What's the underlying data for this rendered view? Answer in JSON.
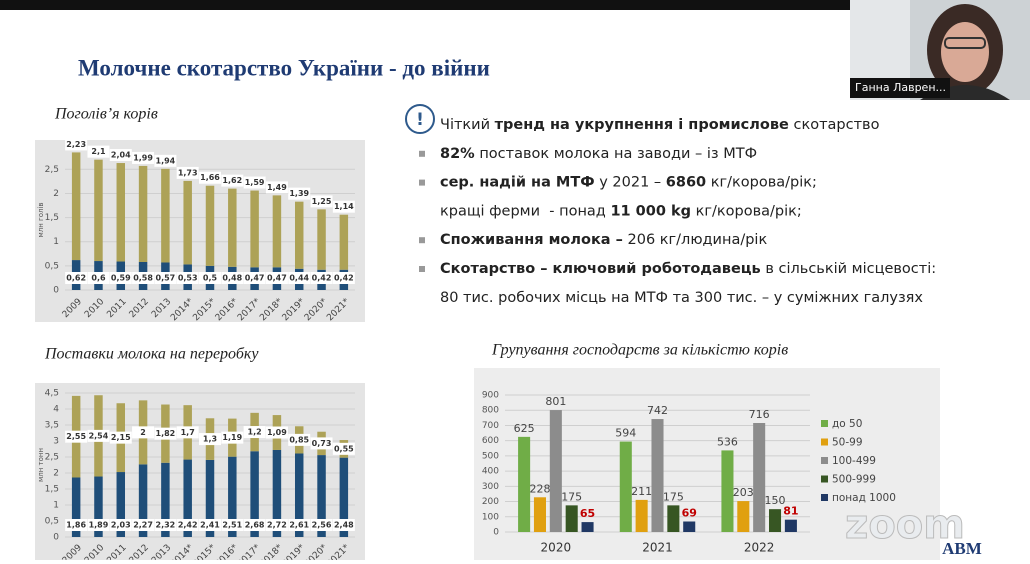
{
  "participant": {
    "name": "Ганна Лаврен..."
  },
  "slide": {
    "title": "Молочне скотарство України  -  до війни",
    "bullets": [
      {
        "icon": "!",
        "segments": [
          {
            "text": "Чіткий "
          },
          {
            "text": "тренд на укрупнення і промислове",
            "bold": true
          },
          {
            "text": " скотарство"
          }
        ]
      },
      {
        "marker": true,
        "segments": [
          {
            "text": "82%",
            "bold": true
          },
          {
            "text": " поставок молока на заводи – із МТФ"
          }
        ]
      },
      {
        "marker": true,
        "segments": [
          {
            "text": "сер. надій на МТФ",
            "bold": true
          },
          {
            "text": " у 2021 – "
          },
          {
            "text": "6860",
            "bold": true
          },
          {
            "text": " кг/корова/рік;"
          }
        ]
      },
      {
        "marker": false,
        "segments": [
          {
            "text": "кращі ферми  - понад "
          },
          {
            "text": "11 000 kg",
            "bold": true
          },
          {
            "text": " кг/корова/рік;"
          }
        ]
      },
      {
        "marker": true,
        "segments": [
          {
            "text": "Споживання молока –",
            "bold": true
          },
          {
            "text": " 206 кг/людина/рік"
          }
        ]
      },
      {
        "marker": true,
        "segments": [
          {
            "text": "Скотарство – ключовий роботодавець",
            "bold": true
          },
          {
            "text": " в сільській місцевості:"
          }
        ]
      },
      {
        "marker": false,
        "segments": [
          {
            "text": "80 тис. робочих місць на МТФ та 300 тис. – у суміжних галузях"
          }
        ]
      }
    ],
    "charts": [
      {
        "type": "bar",
        "stacked": true,
        "title": "Поголів’я корів",
        "ylabel": "млн голів",
        "categories": [
          "2009",
          "2010",
          "2011",
          "2012",
          "2013",
          "2014*",
          "2015*",
          "2016*",
          "2017*",
          "2018*",
          "2019*",
          "2020*",
          "2021*"
        ],
        "series": [
          {
            "color": "#1f4e79",
            "values": [
              0.62,
              0.6,
              0.59,
              0.58,
              0.57,
              0.53,
              0.5,
              0.48,
              0.47,
              0.47,
              0.44,
              0.42,
              0.42
            ],
            "value_labels": [
              "0,62",
              "0,6",
              "0,59",
              "0,58",
              "0,57",
              "0,53",
              "0,5",
              "0,48",
              "0,47",
              "0,47",
              "0,44",
              "0,42",
              "0,42"
            ]
          },
          {
            "color": "#ada257",
            "values": [
              2.23,
              2.1,
              2.04,
              1.99,
              1.94,
              1.73,
              1.66,
              1.62,
              1.59,
              1.49,
              1.39,
              1.25,
              1.14
            ],
            "value_labels": [
              "2,23",
              "2,1",
              "2,04",
              "1,99",
              "1,94",
              "1,73",
              "1,66",
              "1,62",
              "1,59",
              "1,49",
              "1,39",
              "1,25",
              "1,14"
            ]
          }
        ],
        "ylim": [
          0,
          2.9
        ],
        "yticks": [
          0,
          {
            "value": 0.5,
            "label": "0,5"
          },
          1,
          {
            "value": 1.5,
            "label": "1,5"
          },
          2,
          {
            "value": 2.5,
            "label": "2,5"
          }
        ],
        "grid": true
      },
      {
        "type": "bar",
        "stacked": true,
        "title": "Поставки молока на переробку",
        "ylabel": "млн тонн",
        "categories": [
          "2009",
          "2010",
          "2011",
          "2012",
          "2013",
          "2014*",
          "2015*",
          "2016*",
          "2017*",
          "2018*",
          "2019*",
          "2020*",
          "2021*"
        ],
        "series": [
          {
            "color": "#1f4e79",
            "values": [
              1.86,
              1.89,
              2.03,
              2.27,
              2.32,
              2.42,
              2.41,
              2.51,
              2.68,
              2.72,
              2.61,
              2.56,
              2.48
            ],
            "value_labels": [
              "1,86",
              "1,89",
              "2,03",
              "2,27",
              "2,32",
              "2,42",
              "2,41",
              "2,51",
              "2,68",
              "2,72",
              "2,61",
              "2,56",
              "2,48"
            ]
          },
          {
            "color": "#ada257",
            "values": [
              2.55,
              2.54,
              2.15,
              2,
              1.82,
              1.7,
              1.3,
              1.19,
              1.2,
              1.09,
              0.85,
              0.73,
              0.55
            ],
            "value_labels": [
              "2,55",
              "2,54",
              "2,15",
              "2",
              "1,82",
              "1,7",
              "1,3",
              "1,19",
              "1,2",
              "1,09",
              "0,85",
              "0,73",
              "0,55"
            ]
          }
        ],
        "ylim": [
          0,
          4.5
        ],
        "yticks": [
          0,
          {
            "value": 0.5,
            "label": "0,5"
          },
          1,
          {
            "value": 1.5,
            "label": "1,5"
          },
          2,
          {
            "value": 2.5,
            "label": "2,5"
          },
          3,
          {
            "value": 3.5,
            "label": "3,5"
          },
          4,
          {
            "value": 4.5,
            "label": "4,5"
          }
        ],
        "grid": true
      },
      {
        "type": "bar",
        "stacked": false,
        "title": "Групування господарств за кількістю корів",
        "categories": [
          "2020",
          "2021",
          "2022"
        ],
        "series": [
          {
            "name": "до 50",
            "color": "#70ad47",
            "values": [
              625,
              594,
              536
            ]
          },
          {
            "name": "50-99",
            "color": "#e0a010",
            "values": [
              228,
              211,
              203
            ]
          },
          {
            "name": "100-499",
            "color": "#8c8c8c",
            "values": [
              801,
              742,
              716
            ]
          },
          {
            "name": "500-999",
            "color": "#375623",
            "values": [
              175,
              175,
              150
            ]
          },
          {
            "name": "понад 1000",
            "color": "#203864",
            "values": [
              65,
              69,
              81
            ],
            "label_color": "#c00000"
          }
        ],
        "ylim": [
          0,
          900
        ],
        "yticks": [
          0,
          100,
          200,
          300,
          400,
          500,
          600,
          700,
          800,
          900
        ],
        "grid": true
      }
    ]
  },
  "watermark": "zoom",
  "logo": "ABM"
}
